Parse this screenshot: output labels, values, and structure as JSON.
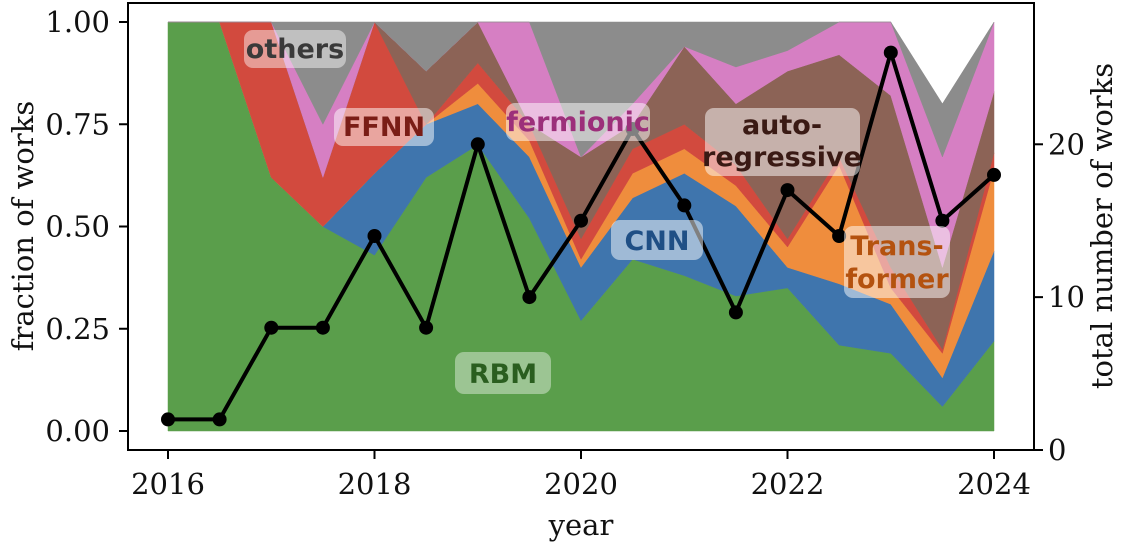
{
  "chart_data": {
    "type": "area",
    "xlabel": "year",
    "ylabel": "fraction of works",
    "y2label": "total number of works",
    "xlim": [
      2016,
      2024
    ],
    "ylim": [
      0,
      1
    ],
    "y2lim": [
      0,
      28
    ],
    "xticks": [
      "2016",
      "2018",
      "2020",
      "2022",
      "2024"
    ],
    "yticks": [
      "0.00",
      "0.25",
      "0.50",
      "0.75",
      "1.00"
    ],
    "y2ticks": [
      "0",
      "10",
      "20"
    ],
    "x": [
      2016,
      2016.5,
      2017,
      2017.5,
      2018,
      2018.5,
      2019,
      2019.5,
      2020,
      2020.5,
      2021,
      2021.5,
      2022,
      2022.5,
      2023,
      2023.5,
      2024
    ],
    "series": [
      {
        "name": "RBM",
        "color": "#5a9e4b",
        "values": [
          1.0,
          1.0,
          0.62,
          0.5,
          0.43,
          0.62,
          0.7,
          0.52,
          0.27,
          0.42,
          0.38,
          0.33,
          0.35,
          0.21,
          0.19,
          0.06,
          0.22
        ]
      },
      {
        "name": "CNN",
        "color": "#3f75ad",
        "values": [
          0,
          0,
          0,
          0,
          0.2,
          0.13,
          0.1,
          0.15,
          0.13,
          0.15,
          0.25,
          0.22,
          0.05,
          0.15,
          0.12,
          0.07,
          0.22
        ]
      },
      {
        "name": "Transformer",
        "color": "#ef8d3d",
        "values": [
          0,
          0,
          0,
          0,
          0,
          0,
          0.05,
          0.04,
          0.02,
          0.06,
          0.06,
          0.05,
          0.05,
          0.29,
          0.04,
          0.06,
          0.2
        ]
      },
      {
        "name": "FFNN",
        "color": "#d24a3e",
        "values": [
          0,
          0,
          0.38,
          0.12,
          0.37,
          0,
          0.05,
          0.04,
          0.05,
          0.06,
          0.06,
          0.05,
          0.02,
          0.02,
          0.05,
          0.01,
          0.04
        ]
      },
      {
        "name": "auto-regressive",
        "color": "#8c6356",
        "values": [
          0,
          0,
          0,
          0,
          0,
          0.13,
          0.1,
          0,
          0.2,
          0.06,
          0.19,
          0.15,
          0.41,
          0.25,
          0.42,
          0.2,
          0.15
        ]
      },
      {
        "name": "fermionic",
        "color": "#d67fc3",
        "values": [
          0,
          0,
          0,
          0.13,
          0,
          0,
          0,
          0.25,
          0,
          0.05,
          0,
          0.09,
          0.05,
          0.08,
          0.18,
          0.27,
          0.17
        ]
      },
      {
        "name": "others",
        "color": "#8c8c8c",
        "values": [
          0,
          0,
          0,
          0.25,
          0,
          0.12,
          0,
          0,
          0.33,
          0.2,
          0.06,
          0.11,
          0.07,
          0,
          0,
          0.13,
          0
        ]
      }
    ],
    "total_works": {
      "color": "#000000",
      "values": [
        2,
        2,
        8,
        8,
        14,
        8,
        20,
        10,
        15,
        21,
        16,
        9,
        17,
        14,
        26,
        15,
        18
      ]
    },
    "labels": {
      "others": "others",
      "ffnn": "FFNN",
      "fermionic": "fermionic",
      "autoregressive_line1": "auto-",
      "autoregressive_line2": "regressive",
      "cnn": "CNN",
      "transformer_line1": "Trans-",
      "transformer_line2": "former",
      "rbm": "RBM"
    },
    "label_colors": {
      "others": "#3a3a3a",
      "ffnn": "#7a1d16",
      "fermionic": "#9c2f7a",
      "autoregressive": "#3a1a14",
      "cnn": "#1f4f85",
      "transformer": "#b4520f",
      "rbm": "#2a5e1f"
    }
  }
}
